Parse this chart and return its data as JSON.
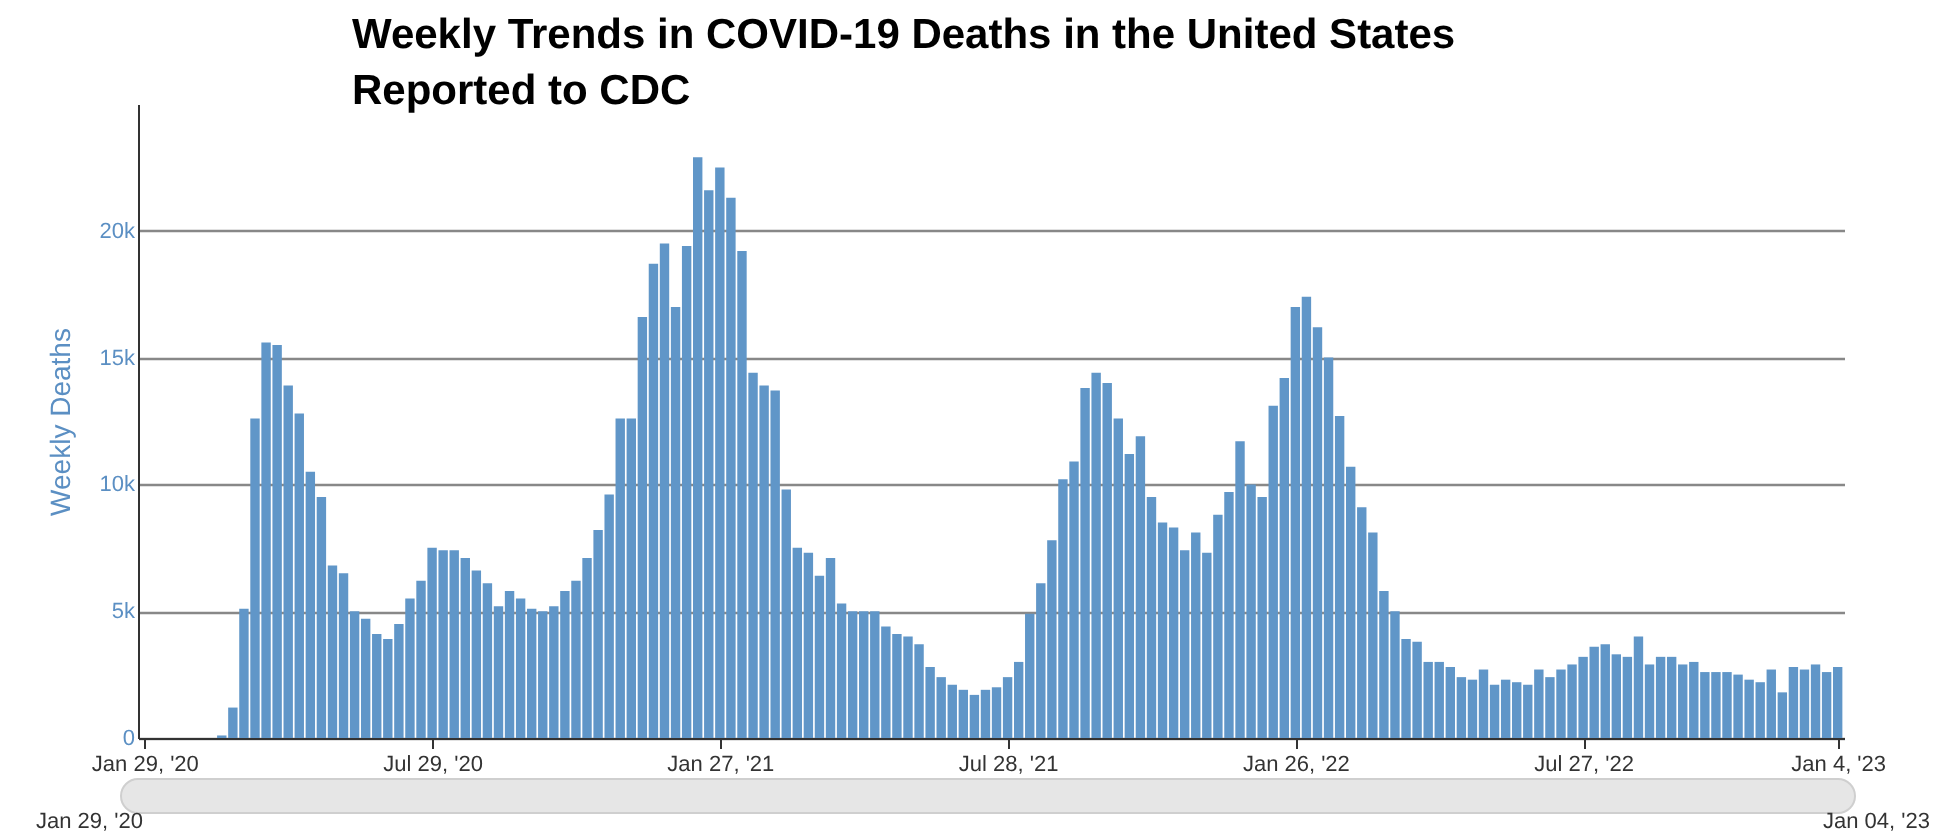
{
  "chart_data": {
    "type": "bar",
    "title": "Weekly Trends in COVID-19 Deaths in the United States Reported to CDC",
    "ylabel": "Weekly Deaths",
    "color": "#6096c8",
    "x": [
      "2020-01-29",
      "2020-02-05",
      "2020-02-12",
      "2020-02-19",
      "2020-02-26",
      "2020-03-04",
      "2020-03-11",
      "2020-03-18",
      "2020-03-25",
      "2020-04-01",
      "2020-04-08",
      "2020-04-15",
      "2020-04-22",
      "2020-04-29",
      "2020-05-06",
      "2020-05-13",
      "2020-05-20",
      "2020-05-27",
      "2020-06-03",
      "2020-06-10",
      "2020-06-17",
      "2020-06-24",
      "2020-07-01",
      "2020-07-08",
      "2020-07-15",
      "2020-07-22",
      "2020-07-29",
      "2020-08-05",
      "2020-08-12",
      "2020-08-19",
      "2020-08-26",
      "2020-09-02",
      "2020-09-09",
      "2020-09-16",
      "2020-09-23",
      "2020-09-30",
      "2020-10-07",
      "2020-10-14",
      "2020-10-21",
      "2020-10-28",
      "2020-11-04",
      "2020-11-11",
      "2020-11-18",
      "2020-11-25",
      "2020-12-02",
      "2020-12-09",
      "2020-12-16",
      "2020-12-23",
      "2020-12-30",
      "2021-01-06",
      "2021-01-13",
      "2021-01-20",
      "2021-01-27",
      "2021-02-03",
      "2021-02-10",
      "2021-02-17",
      "2021-02-24",
      "2021-03-03",
      "2021-03-10",
      "2021-03-17",
      "2021-03-24",
      "2021-03-31",
      "2021-04-07",
      "2021-04-14",
      "2021-04-21",
      "2021-04-28",
      "2021-05-05",
      "2021-05-12",
      "2021-05-19",
      "2021-05-26",
      "2021-06-02",
      "2021-06-09",
      "2021-06-16",
      "2021-06-23",
      "2021-06-30",
      "2021-07-07",
      "2021-07-14",
      "2021-07-21",
      "2021-07-28",
      "2021-08-04",
      "2021-08-11",
      "2021-08-18",
      "2021-08-25",
      "2021-09-01",
      "2021-09-08",
      "2021-09-15",
      "2021-09-22",
      "2021-09-29",
      "2021-10-06",
      "2021-10-13",
      "2021-10-20",
      "2021-10-27",
      "2021-11-03",
      "2021-11-10",
      "2021-11-17",
      "2021-11-24",
      "2021-12-01",
      "2021-12-08",
      "2021-12-15",
      "2021-12-22",
      "2021-12-29",
      "2022-01-05",
      "2022-01-12",
      "2022-01-19",
      "2022-01-26",
      "2022-02-02",
      "2022-02-09",
      "2022-02-16",
      "2022-02-23",
      "2022-03-02",
      "2022-03-09",
      "2022-03-16",
      "2022-03-23",
      "2022-03-30",
      "2022-04-06",
      "2022-04-13",
      "2022-04-20",
      "2022-04-27",
      "2022-05-04",
      "2022-05-11",
      "2022-05-18",
      "2022-05-25",
      "2022-06-01",
      "2022-06-08",
      "2022-06-15",
      "2022-06-22",
      "2022-06-29",
      "2022-07-06",
      "2022-07-13",
      "2022-07-20",
      "2022-07-27",
      "2022-08-03",
      "2022-08-10",
      "2022-08-17",
      "2022-08-24",
      "2022-08-31",
      "2022-09-07",
      "2022-09-14",
      "2022-09-21",
      "2022-09-28",
      "2022-10-05",
      "2022-10-12",
      "2022-10-19",
      "2022-10-26",
      "2022-11-02",
      "2022-11-09",
      "2022-11-16",
      "2022-11-23",
      "2022-11-30",
      "2022-12-07",
      "2022-12-14",
      "2022-12-21",
      "2022-12-28",
      "2023-01-04"
    ],
    "values": [
      0,
      0,
      0,
      0,
      0,
      0,
      0,
      100,
      1200,
      5100,
      12600,
      15600,
      15500,
      13900,
      12800,
      10500,
      9500,
      6800,
      6500,
      5000,
      4700,
      4100,
      3900,
      4500,
      5500,
      6200,
      7500,
      7400,
      7400,
      7100,
      6600,
      6100,
      5200,
      5800,
      5500,
      5100,
      5000,
      5200,
      5800,
      6200,
      7100,
      8200,
      9600,
      12600,
      12600,
      16600,
      18700,
      19500,
      17000,
      19400,
      22900,
      21600,
      22500,
      21300,
      19200,
      14400,
      13900,
      13700,
      9800,
      7500,
      7300,
      6400,
      7100,
      5300,
      5000,
      5000,
      5000,
      4400,
      4100,
      4000,
      3700,
      2800,
      2400,
      2100,
      1900,
      1700,
      1900,
      2000,
      2400,
      3000,
      4900,
      6100,
      7800,
      10200,
      10900,
      13800,
      14400,
      14000,
      12600,
      11200,
      11900,
      9500,
      8500,
      8300,
      7400,
      8100,
      7300,
      8800,
      9700,
      11700,
      10000,
      9500,
      13100,
      14200,
      17000,
      17400,
      16200,
      15000,
      12700,
      10700,
      9100,
      8100,
      5800,
      5000,
      3900,
      3800,
      3000,
      3000,
      2800,
      2400,
      2300,
      2700,
      2100,
      2300,
      2200,
      2100,
      2700,
      2400,
      2700,
      2900,
      3200,
      3600,
      3700,
      3300,
      3200,
      4000,
      2900,
      3200,
      3200,
      2900,
      3000,
      2600,
      2600,
      2600,
      2500,
      2300,
      2200,
      2700,
      1800,
      2800,
      2700,
      2900,
      2600,
      2800
    ],
    "xlim": [
      "2020-01-25",
      "2023-01-08"
    ],
    "xticks": [
      {
        "value": "2020-01-29",
        "label": "Jan 29, '20"
      },
      {
        "value": "2020-07-29",
        "label": "Jul 29, '20"
      },
      {
        "value": "2021-01-27",
        "label": "Jan 27, '21"
      },
      {
        "value": "2021-07-28",
        "label": "Jul 28, '21"
      },
      {
        "value": "2022-01-26",
        "label": "Jan 26, '22"
      },
      {
        "value": "2022-07-27",
        "label": "Jul 27, '22"
      },
      {
        "value": "2023-01-04",
        "label": "Jan 4, '23"
      }
    ],
    "ylim": [
      0,
      25000
    ],
    "yticks": [
      {
        "value": 0,
        "label": "0"
      },
      {
        "value": 5000,
        "label": "5k"
      },
      {
        "value": 10000,
        "label": "10k"
      },
      {
        "value": 15000,
        "label": "15k"
      },
      {
        "value": 20000,
        "label": "20k"
      }
    ],
    "grid": "y",
    "annotations": [
      "Jan 29, '20",
      "Jan 04, '23"
    ]
  }
}
